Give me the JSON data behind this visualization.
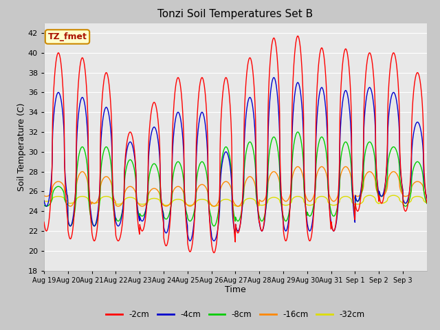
{
  "title": "Tonzi Soil Temperatures Set B",
  "xlabel": "Time",
  "ylabel": "Soil Temperature (C)",
  "ylim": [
    18,
    43
  ],
  "yticks": [
    18,
    20,
    22,
    24,
    26,
    28,
    30,
    32,
    34,
    36,
    38,
    40,
    42
  ],
  "fig_bg_color": "#c8c8c8",
  "ax_bg_color": "#e8e8e8",
  "legend_labels": [
    "-2cm",
    "-4cm",
    "-8cm",
    "-16cm",
    "-32cm"
  ],
  "colors": [
    "#ff0000",
    "#0000cc",
    "#00cc00",
    "#ff8800",
    "#dddd00"
  ],
  "annotation_text": "TZ_fmet",
  "annotation_color": "#aa1100",
  "annotation_bg": "#ffffcc",
  "annotation_border": "#cc8800",
  "tick_labels": [
    "Aug 19",
    "Aug 20",
    "Aug 21",
    "Aug 22",
    "Aug 23",
    "Aug 24",
    "Aug 25",
    "Aug 26",
    "Aug 27",
    "Aug 28",
    "Aug 29",
    "Aug 30",
    "Aug 31",
    "Sep 1",
    "Sep 2",
    "Sep 3"
  ],
  "num_days": 16,
  "points_per_day": 96,
  "day_peaks_2cm": [
    40.0,
    39.5,
    38.0,
    32.0,
    35.0,
    37.5,
    37.5,
    37.5,
    39.5,
    41.5,
    41.7,
    40.5,
    40.4,
    40.0,
    40.0,
    38.0
  ],
  "day_mins_2cm": [
    22.0,
    21.2,
    21.0,
    21.0,
    22.0,
    20.5,
    19.9,
    19.8,
    21.8,
    22.0,
    21.0,
    21.0,
    22.0,
    24.0,
    24.8,
    24.0
  ],
  "day_peaks_4cm": [
    36.0,
    35.5,
    34.5,
    31.0,
    32.5,
    34.0,
    34.0,
    30.0,
    35.5,
    37.5,
    37.0,
    36.5,
    36.2,
    36.5,
    36.0,
    33.0
  ],
  "day_mins_4cm": [
    24.5,
    22.5,
    22.5,
    22.5,
    23.0,
    21.8,
    21.0,
    21.0,
    22.0,
    22.0,
    22.0,
    22.0,
    22.0,
    25.0,
    25.5,
    24.8
  ],
  "day_peaks_8cm": [
    26.5,
    30.5,
    30.5,
    29.2,
    28.8,
    29.0,
    29.0,
    30.5,
    31.0,
    31.5,
    32.0,
    31.5,
    31.0,
    31.0,
    30.5,
    29.0
  ],
  "day_mins_8cm": [
    24.5,
    22.5,
    22.5,
    23.0,
    23.5,
    23.2,
    23.0,
    22.5,
    23.0,
    23.0,
    23.0,
    23.5,
    23.5,
    25.0,
    25.5,
    24.5
  ],
  "day_peaks_16cm": [
    27.0,
    28.0,
    27.5,
    26.5,
    26.3,
    26.5,
    26.7,
    27.0,
    27.5,
    28.0,
    28.5,
    28.5,
    28.5,
    28.0,
    28.0,
    27.0
  ],
  "day_mins_16cm": [
    25.5,
    24.5,
    24.8,
    24.5,
    24.5,
    24.5,
    24.5,
    24.5,
    24.5,
    25.0,
    25.0,
    25.0,
    25.0,
    25.5,
    25.5,
    25.5
  ],
  "day_peaks_32cm": [
    25.5,
    25.5,
    25.5,
    25.4,
    25.3,
    25.2,
    25.2,
    25.2,
    25.3,
    25.4,
    25.5,
    25.5,
    25.5,
    25.6,
    25.6,
    25.5
  ],
  "day_mins_32cm": [
    25.0,
    24.8,
    24.8,
    24.7,
    24.7,
    24.6,
    24.6,
    24.5,
    24.5,
    24.6,
    24.6,
    24.6,
    24.6,
    24.7,
    24.8,
    24.8
  ]
}
